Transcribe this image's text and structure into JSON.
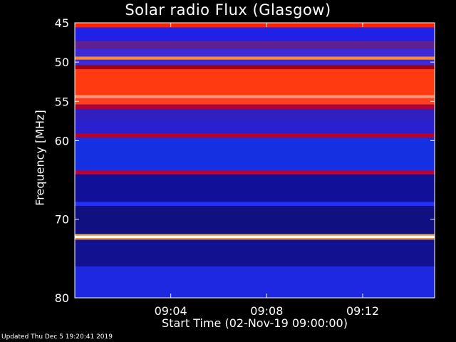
{
  "chart_data": {
    "type": "heatmap",
    "title": "Solar radio Flux (Glasgow)",
    "ylabel": "Frequency [MHz]",
    "xlabel": "Start Time (02-Nov-19 09:00:00)",
    "y_axis": {
      "range": [
        45,
        80
      ],
      "inverted": true,
      "ticks": [
        45,
        50,
        55,
        60,
        70,
        80
      ]
    },
    "x_axis": {
      "range_minutes": [
        0,
        15
      ],
      "ticks": [
        "09:04",
        "09:08",
        "09:12"
      ],
      "tick_minutes": [
        4,
        8,
        12
      ]
    },
    "colors": {
      "background": "#000000",
      "low": "#1a1aff",
      "mid": "#ff2a00",
      "high": "#ffffff"
    },
    "bands": [
      {
        "from": 45.0,
        "to": 45.6,
        "color": "#ff2000"
      },
      {
        "from": 45.6,
        "to": 47.3,
        "color": "#2020e6"
      },
      {
        "from": 47.3,
        "to": 48.3,
        "color": "#602090"
      },
      {
        "from": 48.3,
        "to": 49.3,
        "color": "#3a2ad8"
      },
      {
        "from": 49.3,
        "to": 49.7,
        "color": "#ff8a2a"
      },
      {
        "from": 49.7,
        "to": 50.4,
        "color": "#3a2ad8"
      },
      {
        "from": 50.4,
        "to": 50.9,
        "color": "#a00010"
      },
      {
        "from": 50.9,
        "to": 54.2,
        "color": "#ff3a10"
      },
      {
        "from": 54.2,
        "to": 54.6,
        "color": "#ff9070"
      },
      {
        "from": 54.6,
        "to": 55.4,
        "color": "#ff4020"
      },
      {
        "from": 55.4,
        "to": 56.0,
        "color": "#b00030"
      },
      {
        "from": 56.0,
        "to": 57.5,
        "color": "#3020c0"
      },
      {
        "from": 57.5,
        "to": 59.1,
        "color": "#2a20d0"
      },
      {
        "from": 59.1,
        "to": 59.6,
        "color": "#c00020"
      },
      {
        "from": 59.6,
        "to": 63.8,
        "color": "#1530e0"
      },
      {
        "from": 63.8,
        "to": 64.3,
        "color": "#c00030"
      },
      {
        "from": 64.3,
        "to": 67.8,
        "color": "#101098"
      },
      {
        "from": 67.8,
        "to": 68.3,
        "color": "#2030ff"
      },
      {
        "from": 68.3,
        "to": 71.9,
        "color": "#101080"
      },
      {
        "from": 71.9,
        "to": 72.1,
        "color": "#ffb040"
      },
      {
        "from": 72.1,
        "to": 72.4,
        "color": "#ffffff"
      },
      {
        "from": 72.4,
        "to": 72.6,
        "color": "#ffa030"
      },
      {
        "from": 72.6,
        "to": 76.0,
        "color": "#121290"
      },
      {
        "from": 76.0,
        "to": 80.0,
        "color": "#1e28e0"
      }
    ]
  },
  "footer": "Updated Thu Dec  5 19:20:41 2019"
}
